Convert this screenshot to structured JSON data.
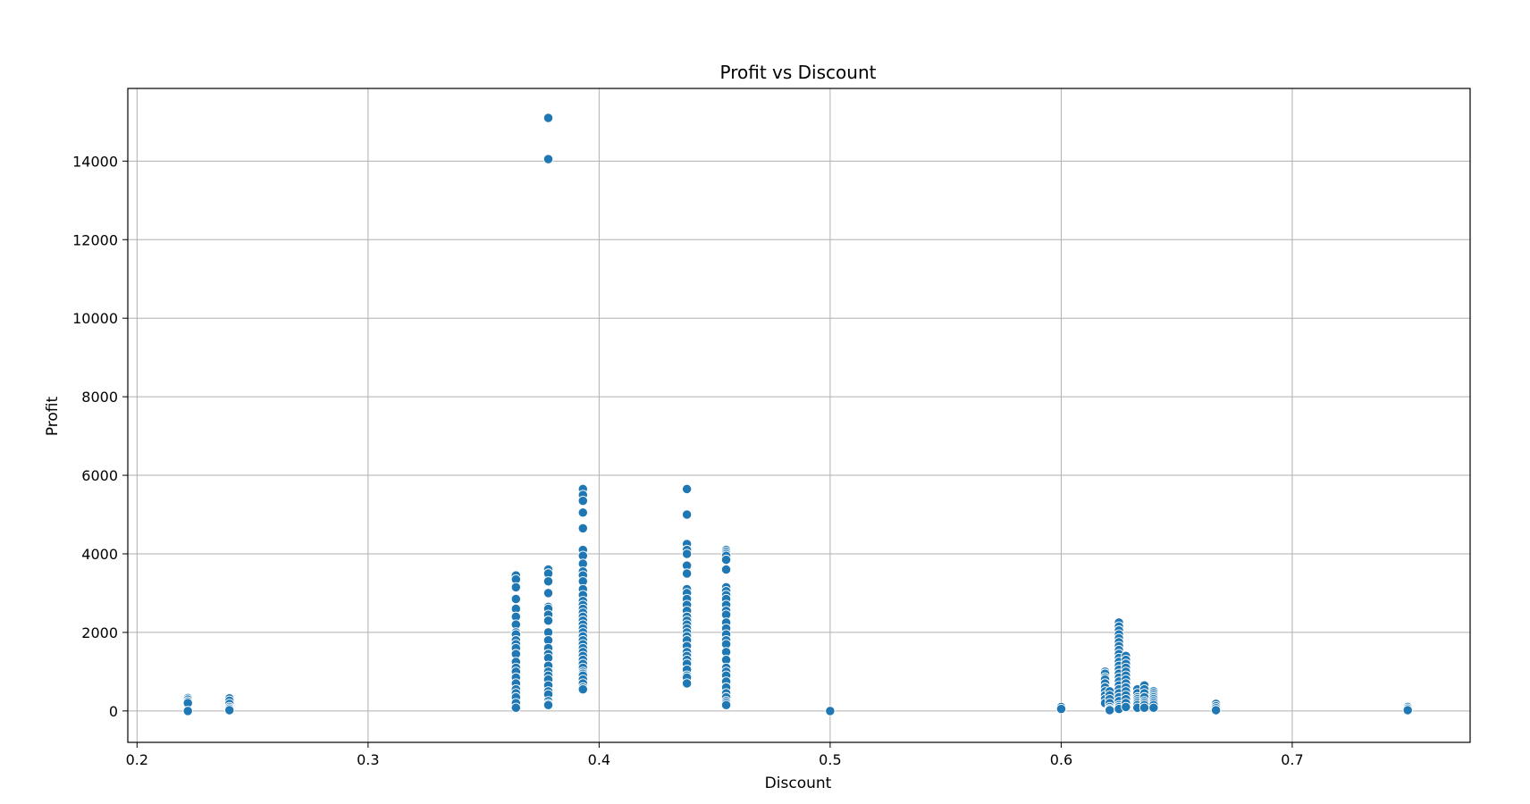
{
  "chart_data": {
    "type": "scatter",
    "title": "Profit vs Discount",
    "xlabel": "Discount",
    "ylabel": "Profit",
    "xlim": [
      0.196,
      0.777
    ],
    "ylim": [
      -800,
      15850
    ],
    "xticks": [
      0.2,
      0.3,
      0.4,
      0.5,
      0.6,
      0.7
    ],
    "xtick_labels": [
      "0.2",
      "0.3",
      "0.4",
      "0.5",
      "0.6",
      "0.7"
    ],
    "yticks": [
      0,
      2000,
      4000,
      6000,
      8000,
      10000,
      12000,
      14000
    ],
    "ytick_labels": [
      "0",
      "2000",
      "4000",
      "6000",
      "8000",
      "10000",
      "12000",
      "14000"
    ],
    "grid": true,
    "marker_color": "#1f77b4",
    "grid_color": "#b0b0b0",
    "series": [
      {
        "x": [
          0.222,
          0.222,
          0.222,
          0.222,
          0.222,
          0.24,
          0.24,
          0.24,
          0.24,
          0.24,
          0.24,
          0.364,
          0.364,
          0.364,
          0.364,
          0.364,
          0.364,
          0.364,
          0.364,
          0.364,
          0.364,
          0.364,
          0.364,
          0.364,
          0.364,
          0.364,
          0.364,
          0.364,
          0.364,
          0.364,
          0.364,
          0.364,
          0.364,
          0.364,
          0.378,
          0.378,
          0.378,
          0.378,
          0.378,
          0.378,
          0.378,
          0.378,
          0.378,
          0.378,
          0.378,
          0.378,
          0.378,
          0.378,
          0.378,
          0.378,
          0.378,
          0.378,
          0.378,
          0.378,
          0.378,
          0.378,
          0.378,
          0.393,
          0.393,
          0.393,
          0.393,
          0.393,
          0.393,
          0.393,
          0.393,
          0.393,
          0.393,
          0.393,
          0.393,
          0.393,
          0.393,
          0.393,
          0.393,
          0.393,
          0.393,
          0.393,
          0.393,
          0.393,
          0.393,
          0.393,
          0.393,
          0.393,
          0.393,
          0.393,
          0.393,
          0.393,
          0.393,
          0.393,
          0.393,
          0.393,
          0.393,
          0.393,
          0.393,
          0.393,
          0.393,
          0.438,
          0.438,
          0.438,
          0.438,
          0.438,
          0.438,
          0.438,
          0.438,
          0.438,
          0.438,
          0.438,
          0.438,
          0.438,
          0.438,
          0.438,
          0.438,
          0.438,
          0.438,
          0.438,
          0.438,
          0.438,
          0.438,
          0.438,
          0.438,
          0.438,
          0.438,
          0.438,
          0.438,
          0.455,
          0.455,
          0.455,
          0.455,
          0.455,
          0.455,
          0.455,
          0.455,
          0.455,
          0.455,
          0.455,
          0.455,
          0.455,
          0.455,
          0.455,
          0.455,
          0.455,
          0.455,
          0.455,
          0.455,
          0.455,
          0.455,
          0.455,
          0.455,
          0.455,
          0.455,
          0.455,
          0.455,
          0.455,
          0.455,
          0.5,
          0.6,
          0.6,
          0.619,
          0.619,
          0.619,
          0.619,
          0.619,
          0.619,
          0.619,
          0.619,
          0.619,
          0.619,
          0.621,
          0.621,
          0.621,
          0.621,
          0.621,
          0.621,
          0.621,
          0.625,
          0.625,
          0.625,
          0.625,
          0.625,
          0.625,
          0.625,
          0.625,
          0.625,
          0.625,
          0.625,
          0.625,
          0.625,
          0.625,
          0.625,
          0.625,
          0.625,
          0.625,
          0.625,
          0.625,
          0.625,
          0.625,
          0.625,
          0.625,
          0.628,
          0.628,
          0.628,
          0.628,
          0.628,
          0.628,
          0.628,
          0.628,
          0.628,
          0.628,
          0.628,
          0.628,
          0.628,
          0.628,
          0.633,
          0.633,
          0.633,
          0.633,
          0.633,
          0.633,
          0.633,
          0.633,
          0.636,
          0.636,
          0.636,
          0.636,
          0.636,
          0.636,
          0.636,
          0.636,
          0.64,
          0.64,
          0.64,
          0.64,
          0.64,
          0.64,
          0.64,
          0.64,
          0.64,
          0.667,
          0.667,
          0.667,
          0.667,
          0.75,
          0.75,
          0.75
        ],
        "y": [
          330,
          290,
          240,
          200,
          0,
          320,
          260,
          180,
          100,
          60,
          20,
          3450,
          3350,
          3150,
          2850,
          2600,
          2400,
          2200,
          2000,
          1950,
          1800,
          1700,
          1600,
          1450,
          1250,
          1100,
          1000,
          850,
          700,
          550,
          450,
          350,
          200,
          80,
          3600,
          3500,
          3300,
          3000,
          2650,
          2600,
          2450,
          2300,
          2000,
          1800,
          1600,
          1450,
          1350,
          1150,
          1000,
          900,
          800,
          650,
          500,
          420,
          250,
          180,
          150,
          5650,
          5500,
          5350,
          5050,
          4650,
          4100,
          3950,
          3750,
          3550,
          3450,
          3300,
          3100,
          2950,
          2800,
          2700,
          2600,
          2500,
          2400,
          2300,
          2200,
          2100,
          2000,
          1900,
          1800,
          1700,
          1600,
          1500,
          1400,
          1300,
          1200,
          1100,
          1000,
          950,
          900,
          800,
          700,
          600,
          550,
          5650,
          5000,
          4250,
          4100,
          4000,
          3700,
          3500,
          3100,
          3000,
          2850,
          2700,
          2550,
          2400,
          2300,
          2200,
          2100,
          2000,
          1900,
          1800,
          1650,
          1500,
          1400,
          1300,
          1200,
          1050,
          900,
          850,
          700,
          4100,
          4050,
          4000,
          3950,
          3850,
          3600,
          3150,
          3050,
          2950,
          2850,
          2700,
          2550,
          2450,
          2250,
          2100,
          1950,
          1800,
          1700,
          1500,
          1300,
          1100,
          1000,
          900,
          750,
          600,
          450,
          350,
          250,
          200,
          150,
          0,
          100,
          50,
          1000,
          950,
          850,
          800,
          700,
          600,
          500,
          400,
          300,
          200,
          500,
          400,
          300,
          200,
          100,
          50,
          20,
          2250,
          2150,
          2050,
          1950,
          1850,
          1750,
          1650,
          1550,
          1450,
          1350,
          1250,
          1150,
          1050,
          950,
          850,
          750,
          650,
          550,
          450,
          350,
          250,
          150,
          100,
          50,
          1400,
          1300,
          1200,
          1100,
          1000,
          900,
          800,
          700,
          600,
          500,
          400,
          300,
          200,
          100,
          550,
          450,
          350,
          300,
          250,
          200,
          150,
          80,
          650,
          550,
          450,
          350,
          250,
          200,
          150,
          80,
          500,
          450,
          400,
          350,
          300,
          250,
          200,
          150,
          80,
          180,
          120,
          70,
          20,
          100,
          60,
          20
        ],
        "outliers_x": [
          0.378,
          0.378
        ],
        "outliers_y": [
          15100,
          14050
        ]
      }
    ]
  }
}
